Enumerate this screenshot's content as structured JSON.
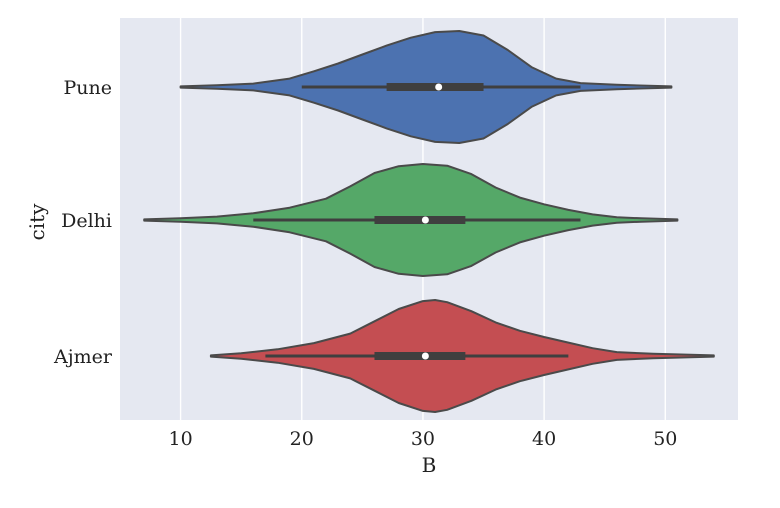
{
  "chart_data": {
    "type": "violin",
    "orientation": "horizontal",
    "xlabel": "B",
    "ylabel": "city",
    "xlim": [
      5,
      56
    ],
    "xticks": [
      10,
      20,
      30,
      40,
      50
    ],
    "grid": true,
    "style": "seaborn-darkgrid",
    "colors": {
      "background": "#e5e8f1",
      "gridline": "#ffffff",
      "outline": "#4a4a4a",
      "box": "#3f3f3f",
      "median": "#ffffff"
    },
    "categories": [
      "Pune",
      "Delhi",
      "Ajmer"
    ],
    "series": [
      {
        "category": "Pune",
        "color": "#4c72b0",
        "min": 10,
        "q1": 27,
        "median": 31.3,
        "q3": 35,
        "max": 50.5,
        "whisker_low": 20,
        "whisker_high": 43,
        "density": [
          [
            10,
            0.01
          ],
          [
            13,
            0.03
          ],
          [
            16,
            0.06
          ],
          [
            19,
            0.15
          ],
          [
            21,
            0.28
          ],
          [
            23,
            0.42
          ],
          [
            25,
            0.58
          ],
          [
            27,
            0.74
          ],
          [
            29,
            0.88
          ],
          [
            31,
            0.98
          ],
          [
            33,
            1.0
          ],
          [
            35,
            0.92
          ],
          [
            37,
            0.66
          ],
          [
            39,
            0.35
          ],
          [
            41,
            0.15
          ],
          [
            43,
            0.07
          ],
          [
            46,
            0.04
          ],
          [
            50.5,
            0.01
          ]
        ]
      },
      {
        "category": "Delhi",
        "color": "#55a868",
        "min": 7,
        "q1": 26,
        "median": 30.2,
        "q3": 33.5,
        "max": 51,
        "whisker_low": 16,
        "whisker_high": 43,
        "density": [
          [
            7,
            0.01
          ],
          [
            10,
            0.03
          ],
          [
            13,
            0.06
          ],
          [
            16,
            0.12
          ],
          [
            19,
            0.22
          ],
          [
            22,
            0.38
          ],
          [
            24,
            0.6
          ],
          [
            26,
            0.84
          ],
          [
            28,
            0.96
          ],
          [
            30,
            1.0
          ],
          [
            32,
            0.97
          ],
          [
            34,
            0.82
          ],
          [
            36,
            0.58
          ],
          [
            38,
            0.4
          ],
          [
            40,
            0.28
          ],
          [
            42,
            0.18
          ],
          [
            44,
            0.1
          ],
          [
            46,
            0.05
          ],
          [
            48,
            0.03
          ],
          [
            51,
            0.01
          ]
        ]
      },
      {
        "category": "Ajmer",
        "color": "#c44e52",
        "min": 12.5,
        "q1": 26,
        "median": 30.2,
        "q3": 33.5,
        "max": 54,
        "whisker_low": 17,
        "whisker_high": 42,
        "density": [
          [
            12.5,
            0.01
          ],
          [
            15,
            0.05
          ],
          [
            18,
            0.12
          ],
          [
            21,
            0.23
          ],
          [
            24,
            0.4
          ],
          [
            26,
            0.62
          ],
          [
            28,
            0.84
          ],
          [
            30,
            0.98
          ],
          [
            31,
            1.0
          ],
          [
            32,
            0.96
          ],
          [
            34,
            0.8
          ],
          [
            36,
            0.6
          ],
          [
            38,
            0.45
          ],
          [
            40,
            0.34
          ],
          [
            42,
            0.24
          ],
          [
            44,
            0.14
          ],
          [
            46,
            0.07
          ],
          [
            49,
            0.04
          ],
          [
            54,
            0.01
          ]
        ]
      }
    ]
  }
}
